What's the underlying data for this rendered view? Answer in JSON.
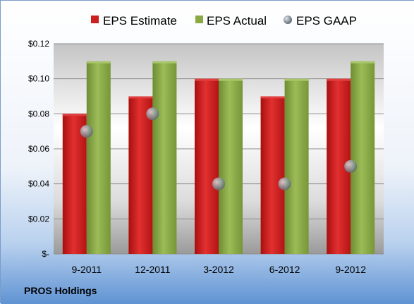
{
  "footer": {
    "company": "PROS Holdings"
  },
  "chart_data": {
    "type": "bar",
    "categories": [
      "9-2011",
      "12-2011",
      "3-2012",
      "6-2012",
      "9-2012"
    ],
    "series": [
      {
        "name": "EPS Estimate",
        "kind": "bar",
        "color": "#cc1f1f",
        "values": [
          0.08,
          0.09,
          0.1,
          0.09,
          0.1
        ]
      },
      {
        "name": "EPS Actual",
        "kind": "bar",
        "color": "#8aaa44",
        "values": [
          0.11,
          0.11,
          0.1,
          0.1,
          0.11
        ]
      },
      {
        "name": "EPS GAAP",
        "kind": "marker",
        "color": "#9aa3ab",
        "values": [
          0.07,
          0.08,
          0.04,
          0.04,
          0.05
        ]
      }
    ],
    "y_ticks": [
      {
        "value": 0,
        "label": "$-"
      },
      {
        "value": 0.02,
        "label": "$0.02"
      },
      {
        "value": 0.04,
        "label": "$0.04"
      },
      {
        "value": 0.06,
        "label": "$0.06"
      },
      {
        "value": 0.08,
        "label": "$0.08"
      },
      {
        "value": 0.1,
        "label": "$0.10"
      },
      {
        "value": 0.12,
        "label": "$0.12"
      }
    ],
    "ylim": [
      0,
      0.12
    ],
    "grid": true,
    "legend_position": "top"
  }
}
